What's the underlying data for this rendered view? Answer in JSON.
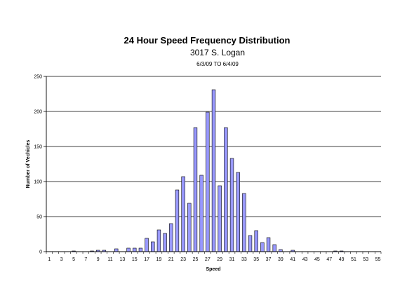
{
  "chart_data": {
    "type": "bar",
    "title": "24 Hour Speed Frequency Distribution",
    "subtitle": "3017 S. Logan",
    "date_range": "6/3/09 TO 6/4/09",
    "xlabel": "Speed",
    "ylabel": "Number of Vechicles",
    "ylim": [
      0,
      250
    ],
    "yticks": [
      0,
      50,
      100,
      150,
      200,
      250
    ],
    "grid": true,
    "bar_color": "#9999ff",
    "categories": [
      1,
      2,
      3,
      4,
      5,
      6,
      7,
      8,
      9,
      10,
      11,
      12,
      13,
      14,
      15,
      16,
      17,
      18,
      19,
      20,
      21,
      22,
      23,
      24,
      25,
      26,
      27,
      28,
      29,
      30,
      31,
      32,
      33,
      34,
      35,
      36,
      37,
      38,
      39,
      40,
      41,
      42,
      43,
      44,
      45,
      46,
      47,
      48,
      49,
      50,
      51,
      52,
      53,
      54,
      55
    ],
    "x_tick_labels": [
      "1",
      "3",
      "5",
      "7",
      "9",
      "11",
      "13",
      "15",
      "17",
      "19",
      "21",
      "23",
      "25",
      "27",
      "29",
      "31",
      "33",
      "35",
      "37",
      "39",
      "41",
      "43",
      "45",
      "47",
      "49",
      "51",
      "53",
      "55"
    ],
    "values": [
      0,
      0,
      0,
      0,
      1,
      0,
      0,
      1,
      2,
      2,
      0,
      4,
      0,
      5,
      5,
      5,
      19,
      14,
      31,
      26,
      40,
      88,
      107,
      69,
      177,
      109,
      199,
      231,
      94,
      177,
      133,
      113,
      83,
      23,
      30,
      13,
      20,
      10,
      3,
      0,
      2,
      0,
      0,
      0,
      0,
      0,
      0,
      1,
      1,
      0,
      0,
      0,
      0,
      0,
      0
    ]
  }
}
